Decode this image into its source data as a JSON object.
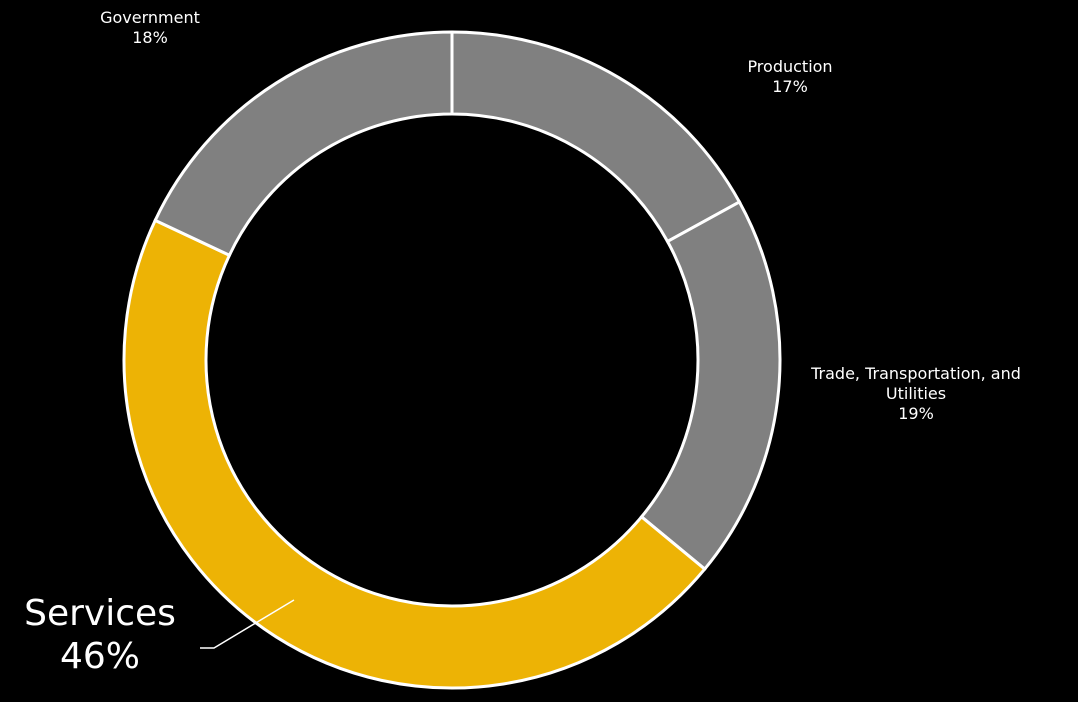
{
  "chart_data": {
    "type": "pie",
    "subtype": "donut",
    "title": "",
    "categories": [
      "Production",
      "Trade, Transportation, and Utilities",
      "Services",
      "Government"
    ],
    "values": [
      17,
      19,
      46,
      18
    ],
    "value_labels": [
      "17%",
      "19%",
      "46%",
      "18%"
    ],
    "colors": [
      "#808080",
      "#808080",
      "#EDB305",
      "#808080"
    ],
    "highlighted": "Services",
    "legend": "none",
    "slice_border_color": "#FFFFFF",
    "background": "#000000",
    "label_color": "#FFFFFF"
  }
}
